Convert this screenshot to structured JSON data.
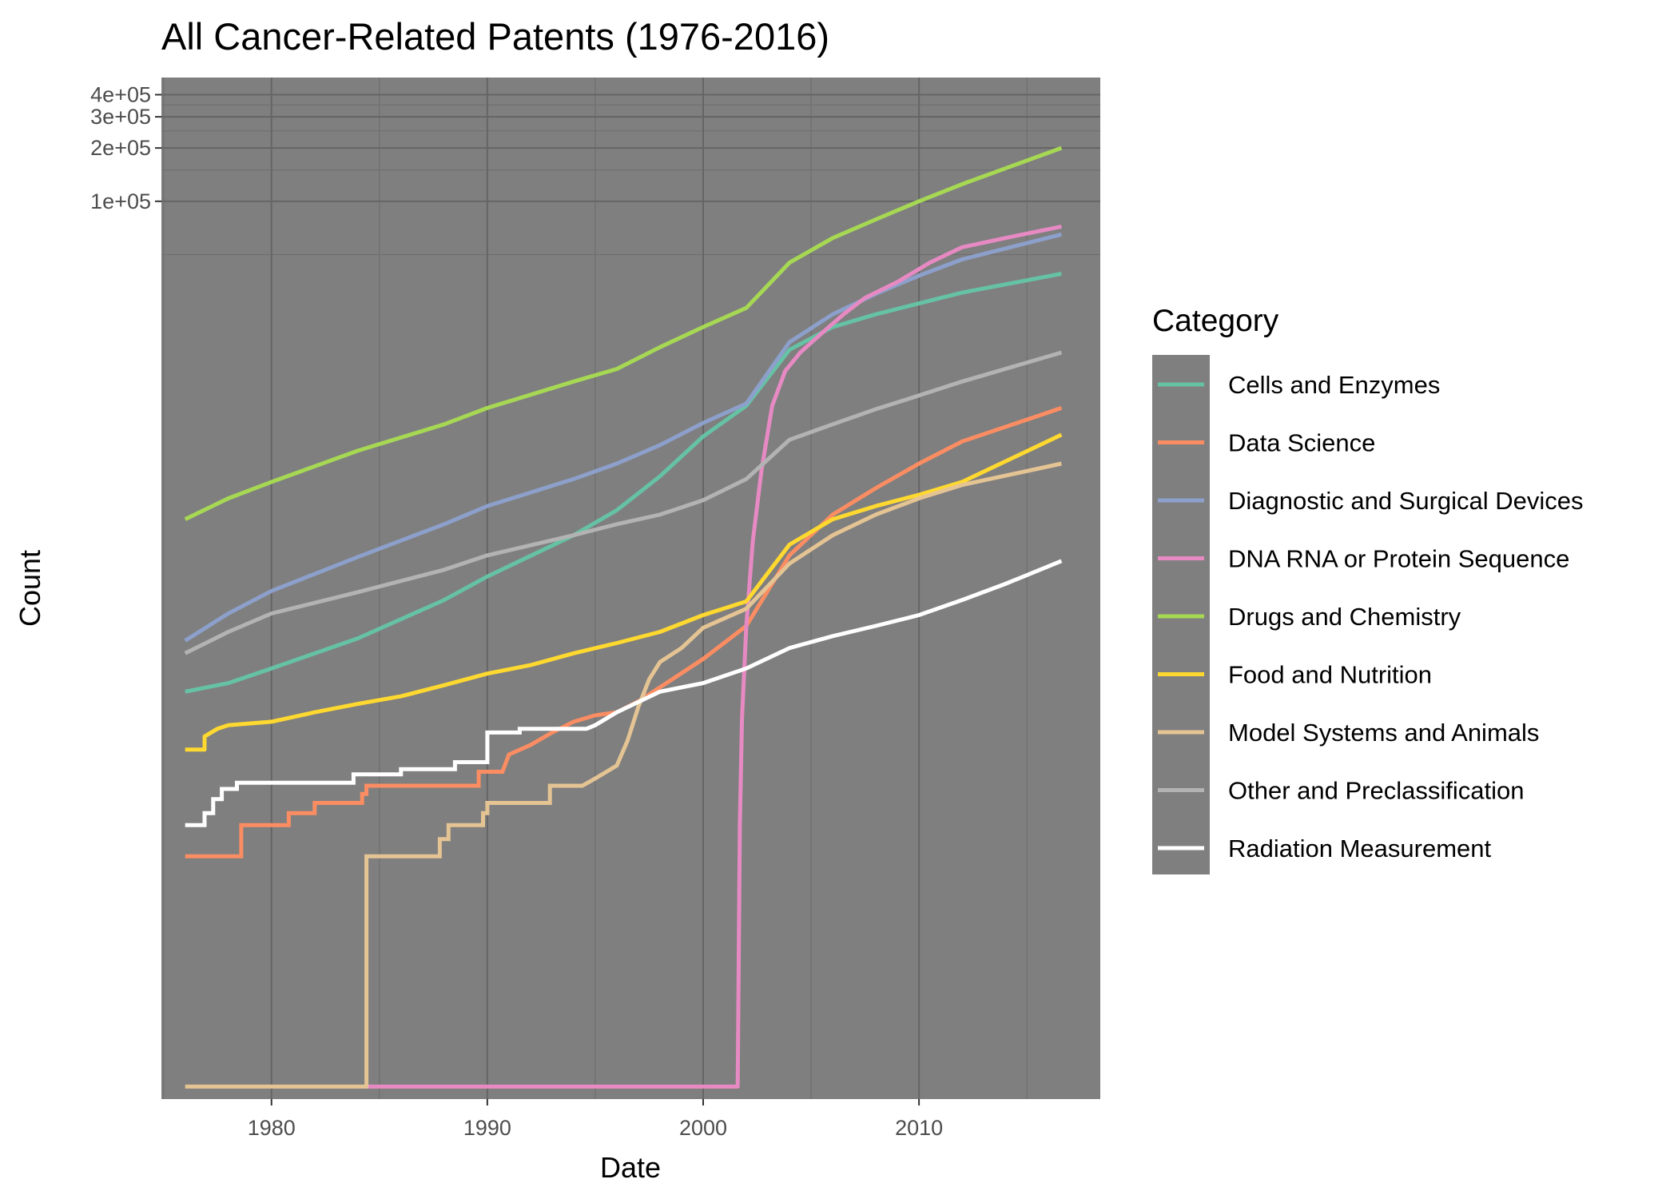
{
  "chart_data": {
    "type": "line",
    "title": "All Cancer-Related Patents (1976-2016)",
    "xlabel": "Date",
    "ylabel": "Count",
    "y_scale": "log",
    "xlim": [
      1974.9,
      2018.4
    ],
    "ylim": [
      0.85,
      500000
    ],
    "x_ticks": [
      1980,
      1990,
      2000,
      2010
    ],
    "x_tick_labels": [
      "1980",
      "1990",
      "2000",
      "2010"
    ],
    "y_ticks": [
      100000,
      200000,
      300000,
      400000
    ],
    "y_tick_labels": [
      "1e+05",
      "2e+05",
      "3e+05",
      "4e+05"
    ],
    "grid": true,
    "panel_background": "#7f7f7f",
    "legend": {
      "title": "Category",
      "position": "right"
    },
    "series": [
      {
        "name": "Cells and Enzymes",
        "color": "#66c2a5",
        "step": false,
        "x": [
          1976.0,
          1978.0,
          1980.0,
          1984.0,
          1988.0,
          1990.0,
          1994.0,
          1996.0,
          1998.0,
          2000.0,
          2002.0,
          2004.0,
          2006.0,
          2008.0,
          2010.0,
          2012.0,
          2016.6
        ],
        "y": [
          170,
          190,
          230,
          340,
          560,
          760,
          1300,
          1800,
          2800,
          4700,
          7000,
          14500,
          19500,
          23000,
          26500,
          30500,
          39000
        ]
      },
      {
        "name": "Data Science",
        "color": "#fc8d62",
        "step": true,
        "x": [
          1976.0,
          1978.6,
          1978.6,
          1980.8,
          1980.8,
          1982.0,
          1982.0,
          1984.2,
          1984.2,
          1984.4,
          1984.4,
          1989.6,
          1989.6,
          1990.7,
          1991.0,
          1992.0,
          1993.0,
          1994.0,
          1995.0,
          1996.0,
          1997.0,
          1998.0,
          2000.0,
          2002.0,
          2004.0,
          2006.0,
          2008.0,
          2010.0,
          2012.0,
          2016.6
        ],
        "y": [
          20,
          20,
          30,
          30,
          35,
          35,
          40,
          40,
          45,
          45,
          50,
          50,
          60,
          60,
          75,
          85,
          100,
          115,
          125,
          130,
          150,
          180,
          260,
          400,
          1000,
          1700,
          2400,
          3300,
          4400,
          6800
        ]
      },
      {
        "name": "Diagnostic and Surgical Devices",
        "color": "#8da0cb",
        "step": false,
        "x": [
          1976.0,
          1978.0,
          1980.0,
          1984.0,
          1988.0,
          1990.0,
          1994.0,
          1996.0,
          1998.0,
          2000.0,
          2002.0,
          2004.0,
          2006.0,
          2008.0,
          2010.0,
          2012.0,
          2016.6
        ],
        "y": [
          330,
          470,
          630,
          980,
          1500,
          1900,
          2700,
          3300,
          4200,
          5600,
          7200,
          16000,
          23000,
          30000,
          38000,
          47000,
          65000
        ]
      },
      {
        "name": "DNA RNA or Protein Sequence",
        "color": "#e78ac3",
        "step": false,
        "x": [
          1984.4,
          2001.6,
          2001.7,
          2001.8,
          2002.0,
          2002.3,
          2002.7,
          2003.2,
          2003.8,
          2004.5,
          2005.5,
          2006.5,
          2007.5,
          2009.0,
          2010.5,
          2012.0,
          2014.0,
          2016.6
        ],
        "y": [
          1,
          1,
          30,
          120,
          400,
          1200,
          3000,
          7000,
          11000,
          14000,
          18000,
          23000,
          28500,
          35000,
          45000,
          55000,
          62000,
          72000
        ]
      },
      {
        "name": "Drugs and Chemistry",
        "color": "#a6d854",
        "step": false,
        "x": [
          1976.0,
          1978.0,
          1980.0,
          1984.0,
          1988.0,
          1990.0,
          1994.0,
          1996.0,
          1998.0,
          2000.0,
          2002.0,
          2004.0,
          2006.0,
          2008.0,
          2010.0,
          2012.0,
          2016.6
        ],
        "y": [
          1600,
          2100,
          2600,
          3900,
          5500,
          6800,
          9600,
          11300,
          15000,
          19500,
          25000,
          45000,
          62000,
          79000,
          100000,
          125000,
          200000
        ]
      },
      {
        "name": "Food and Nutrition",
        "color": "#ffd92f",
        "step": false,
        "x": [
          1976.0,
          1976.9,
          1976.9,
          1977.5,
          1978.0,
          1980.0,
          1982.0,
          1984.0,
          1986.0,
          1988.0,
          1990.0,
          1992.0,
          1994.0,
          1996.0,
          1998.0,
          2000.0,
          2002.0,
          2004.0,
          2006.0,
          2008.0,
          2010.0,
          2012.0,
          2016.6
        ],
        "y": [
          80,
          80,
          95,
          105,
          110,
          115,
          130,
          145,
          160,
          185,
          215,
          240,
          280,
          320,
          370,
          460,
          550,
          1150,
          1600,
          1900,
          2200,
          2600,
          4800
        ]
      },
      {
        "name": "Model Systems and Animals",
        "color": "#e5c494",
        "step": true,
        "x": [
          1976.0,
          1984.4,
          1984.4,
          1987.8,
          1987.8,
          1988.2,
          1988.2,
          1989.8,
          1989.8,
          1990.0,
          1990.0,
          1992.9,
          1992.9,
          1994.4,
          1995.0,
          1996.0,
          1996.5,
          1997.0,
          1997.5,
          1998.0,
          1999.0,
          2000.0,
          2002.0,
          2004.0,
          2006.0,
          2008.0,
          2010.0,
          2012.0,
          2016.6
        ],
        "y": [
          1,
          1,
          20,
          20,
          25,
          25,
          30,
          30,
          35,
          35,
          40,
          40,
          50,
          50,
          55,
          65,
          90,
          140,
          200,
          250,
          300,
          390,
          500,
          900,
          1300,
          1700,
          2100,
          2500,
          3300
        ]
      },
      {
        "name": "Other and Preclassification",
        "color": "#b3b3b3",
        "step": false,
        "x": [
          1976.0,
          1978.0,
          1980.0,
          1984.0,
          1988.0,
          1990.0,
          1994.0,
          1996.0,
          1998.0,
          2000.0,
          2002.0,
          2004.0,
          2006.0,
          2008.0,
          2010.0,
          2012.0,
          2016.6
        ],
        "y": [
          280,
          370,
          470,
          620,
          830,
          1000,
          1300,
          1500,
          1700,
          2050,
          2700,
          4500,
          5500,
          6700,
          8000,
          9600,
          14000
        ]
      },
      {
        "name": "Radiation Measurement",
        "color": "#ffffff",
        "step": true,
        "x": [
          1976.0,
          1976.9,
          1976.9,
          1977.3,
          1977.3,
          1977.7,
          1977.7,
          1978.4,
          1978.4,
          1983.8,
          1983.8,
          1986.0,
          1986.0,
          1988.5,
          1988.5,
          1990.0,
          1990.0,
          1991.5,
          1991.5,
          1994.6,
          1995.0,
          1996.0,
          1998.0,
          2000.0,
          2002.0,
          2004.0,
          2006.0,
          2008.0,
          2010.0,
          2012.0,
          2014.0,
          2016.6
        ],
        "y": [
          30,
          30,
          35,
          35,
          42,
          42,
          48,
          48,
          52,
          52,
          58,
          58,
          62,
          62,
          68,
          68,
          100,
          100,
          105,
          105,
          110,
          130,
          170,
          190,
          230,
          300,
          350,
          400,
          460,
          560,
          690,
          930
        ]
      }
    ]
  }
}
